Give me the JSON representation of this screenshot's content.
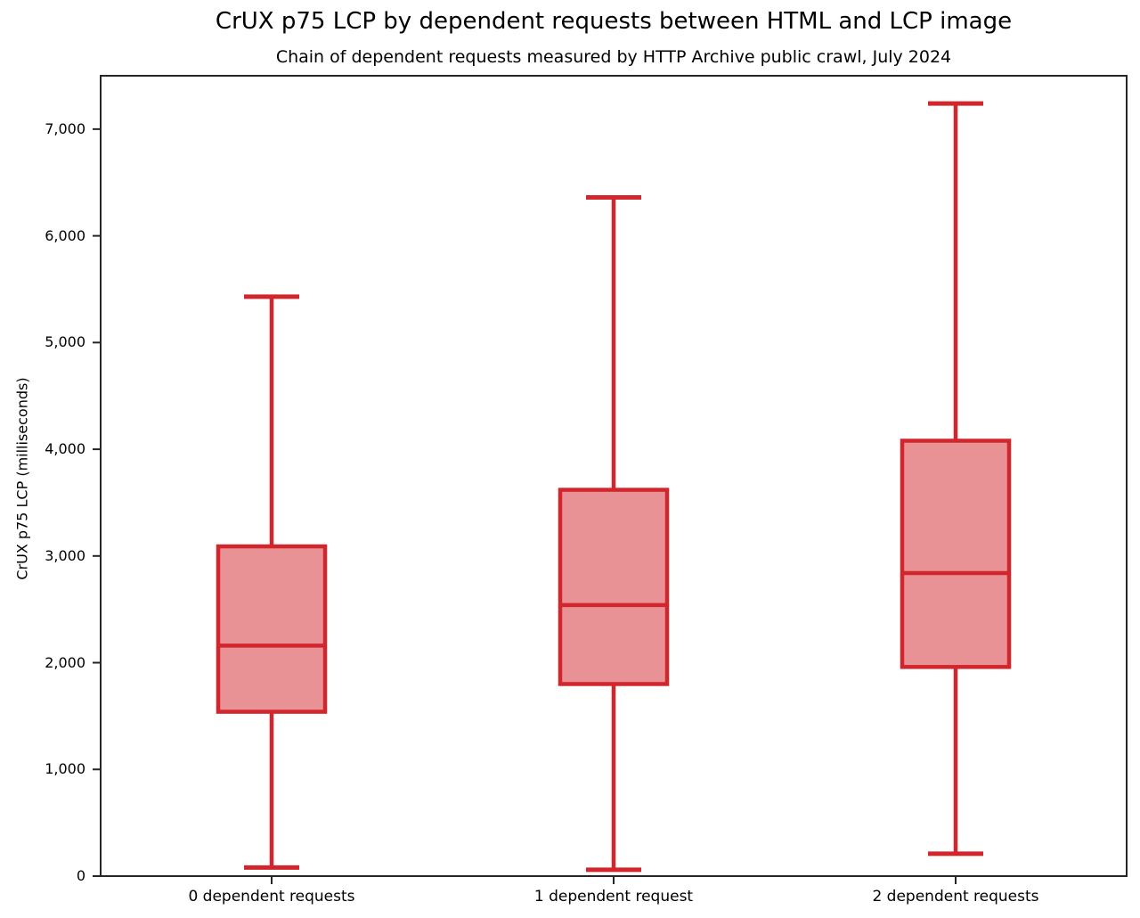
{
  "chart_data": {
    "type": "boxplot",
    "title": "CrUX p75 LCP by dependent requests between HTML and LCP image",
    "subtitle": "Chain of dependent requests measured by HTTP Archive public crawl, July 2024",
    "ylabel": "CrUX p75 LCP (milliseconds)",
    "xlabel": "",
    "categories": [
      "0 dependent requests",
      "1 dependent request",
      "2 dependent requests"
    ],
    "series": [
      {
        "name": "0 dependent requests",
        "whisker_low": 80,
        "q1": 1540,
        "median": 2160,
        "q3": 3090,
        "whisker_high": 5430
      },
      {
        "name": "1 dependent request",
        "whisker_low": 60,
        "q1": 1800,
        "median": 2540,
        "q3": 3620,
        "whisker_high": 6360
      },
      {
        "name": "2 dependent requests",
        "whisker_low": 210,
        "q1": 1960,
        "median": 2840,
        "q3": 4080,
        "whisker_high": 7240
      }
    ],
    "ylim": [
      0,
      7500
    ],
    "yticks": [
      {
        "value": 0,
        "label": "0"
      },
      {
        "value": 1000,
        "label": "1,000"
      },
      {
        "value": 2000,
        "label": "2,000"
      },
      {
        "value": 3000,
        "label": "3,000"
      },
      {
        "value": 4000,
        "label": "4,000"
      },
      {
        "value": 5000,
        "label": "5,000"
      },
      {
        "value": 6000,
        "label": "6,000"
      },
      {
        "value": 7000,
        "label": "7,000"
      }
    ],
    "grid": false,
    "legend": null,
    "colors": {
      "box_edge": "#d2262c",
      "box_fill": "#e89296",
      "spine": "#262626",
      "text": "#000000",
      "background": "#ffffff"
    }
  }
}
